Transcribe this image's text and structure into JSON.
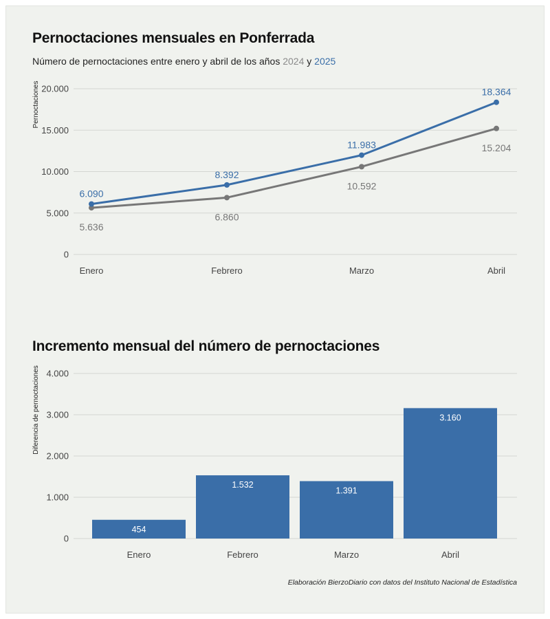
{
  "chart_data": [
    {
      "type": "line",
      "title": "Pernoctaciones mensuales en Ponferrada",
      "subtitle_prefix": "Número de pernoctaciones entre enero y abril de los años",
      "subtitle_joiner": "y",
      "ylabel": "Pernoctaciones",
      "categories": [
        "Enero",
        "Febrero",
        "Marzo",
        "Abril"
      ],
      "ylim": [
        0,
        20000
      ],
      "yticks": [
        0,
        5000,
        10000,
        15000,
        20000
      ],
      "ytick_labels": [
        "0",
        "5.000",
        "10.000",
        "15.000",
        "20.000"
      ],
      "grid": true,
      "series": [
        {
          "name": "2024",
          "color": "#777777",
          "values": [
            5636,
            6860,
            10592,
            15204
          ],
          "labels": [
            "5.636",
            "6.860",
            "10.592",
            "15.204"
          ]
        },
        {
          "name": "2025",
          "color": "#3a6ea8",
          "values": [
            6090,
            8392,
            11983,
            18364
          ],
          "labels": [
            "6.090",
            "8.392",
            "11.983",
            "18.364"
          ]
        }
      ]
    },
    {
      "type": "bar",
      "title": "Incremento mensual del número de pernoctaciones",
      "ylabel": "Diferencia de pernoctaciones",
      "categories": [
        "Enero",
        "Febrero",
        "Marzo",
        "Abril"
      ],
      "values": [
        454,
        1532,
        1391,
        3160
      ],
      "labels": [
        "454",
        "1.532",
        "1.391",
        "3.160"
      ],
      "color": "#3a6ea8",
      "ylim": [
        0,
        4000
      ],
      "yticks": [
        0,
        1000,
        2000,
        3000,
        4000
      ],
      "ytick_labels": [
        "0",
        "1.000",
        "2.000",
        "3.000",
        "4.000"
      ],
      "grid": true
    }
  ],
  "caption": "Elaboración BierzoDiario con datos del Instituto Nacional de Estadística"
}
